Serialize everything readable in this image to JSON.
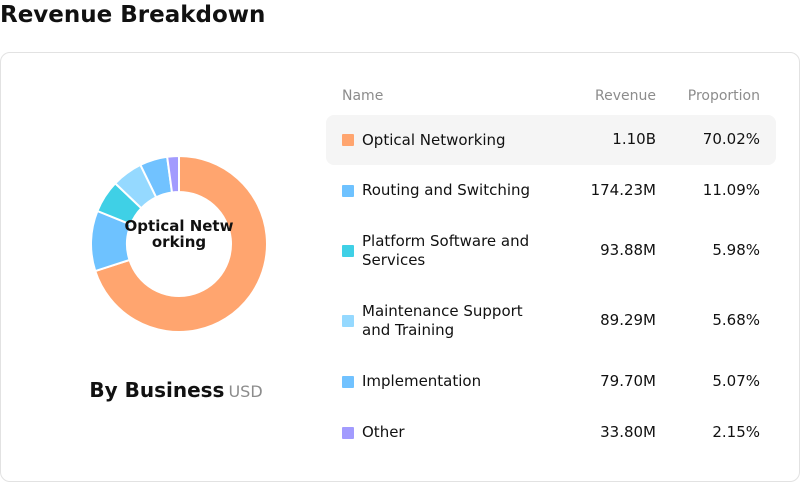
{
  "header": {
    "title": "Revenue Breakdown"
  },
  "summary": {
    "title": "By Business",
    "unit": "USD",
    "center_label": "Optical Networking"
  },
  "table": {
    "headers": {
      "name": "Name",
      "revenue": "Revenue",
      "proportion": "Proportion"
    },
    "highlighted_row": 0
  },
  "chart_data": {
    "type": "pie",
    "categories": [
      "Optical Networking",
      "Routing and Switching",
      "Platform Software and Services",
      "Maintenance Support and Training",
      "Implementation",
      "Other"
    ],
    "revenue_labels": [
      "1.10B",
      "174.23M",
      "93.88M",
      "89.29M",
      "79.70M",
      "33.80M"
    ],
    "proportion_labels": [
      "70.02%",
      "11.09%",
      "5.98%",
      "5.68%",
      "5.07%",
      "2.15%"
    ],
    "values": [
      70.02,
      11.09,
      5.98,
      5.68,
      5.07,
      2.15
    ],
    "colors": [
      "#FFA56F",
      "#6EC2FF",
      "#3FD0E6",
      "#95D9FF",
      "#71C2FF",
      "#A29BFE"
    ]
  }
}
